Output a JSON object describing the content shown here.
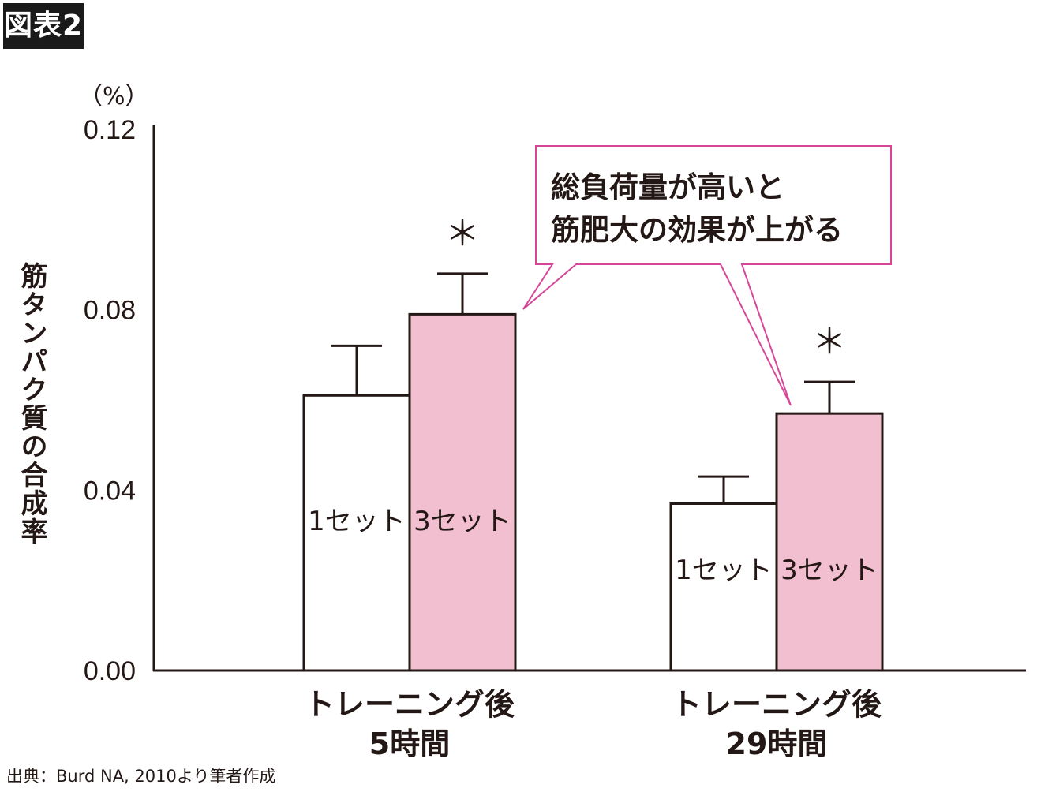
{
  "figure_label": "図表2",
  "source_note": "出典：Burd NA, 2010より筆者作成",
  "callout": {
    "lines": [
      "総負荷量が高いと",
      "筋肥大の効果が上がる"
    ]
  },
  "colors": {
    "pink": "#f2bfd0",
    "white": "#ffffff",
    "axis": "#231815",
    "callout_border": "#d6479a"
  },
  "chart_data": {
    "type": "bar",
    "ylabel": "筋タンパク質の合成率",
    "y_unit": "（%）",
    "ylim": [
      0,
      0.12
    ],
    "yticks": [
      "0.00",
      "0.04",
      "0.08",
      "0.12"
    ],
    "categories": [
      {
        "lines": [
          "トレーニング後",
          "5時間"
        ]
      },
      {
        "lines": [
          "トレーニング後",
          "29時間"
        ]
      }
    ],
    "series": [
      {
        "name": "1セット",
        "values": [
          0.061,
          0.037
        ],
        "errors": [
          0.011,
          0.006
        ],
        "significant": [
          false,
          false
        ]
      },
      {
        "name": "3セット",
        "values": [
          0.079,
          0.057
        ],
        "errors": [
          0.009,
          0.007
        ],
        "significant": [
          true,
          true
        ]
      }
    ],
    "significance_mark": "＊"
  }
}
